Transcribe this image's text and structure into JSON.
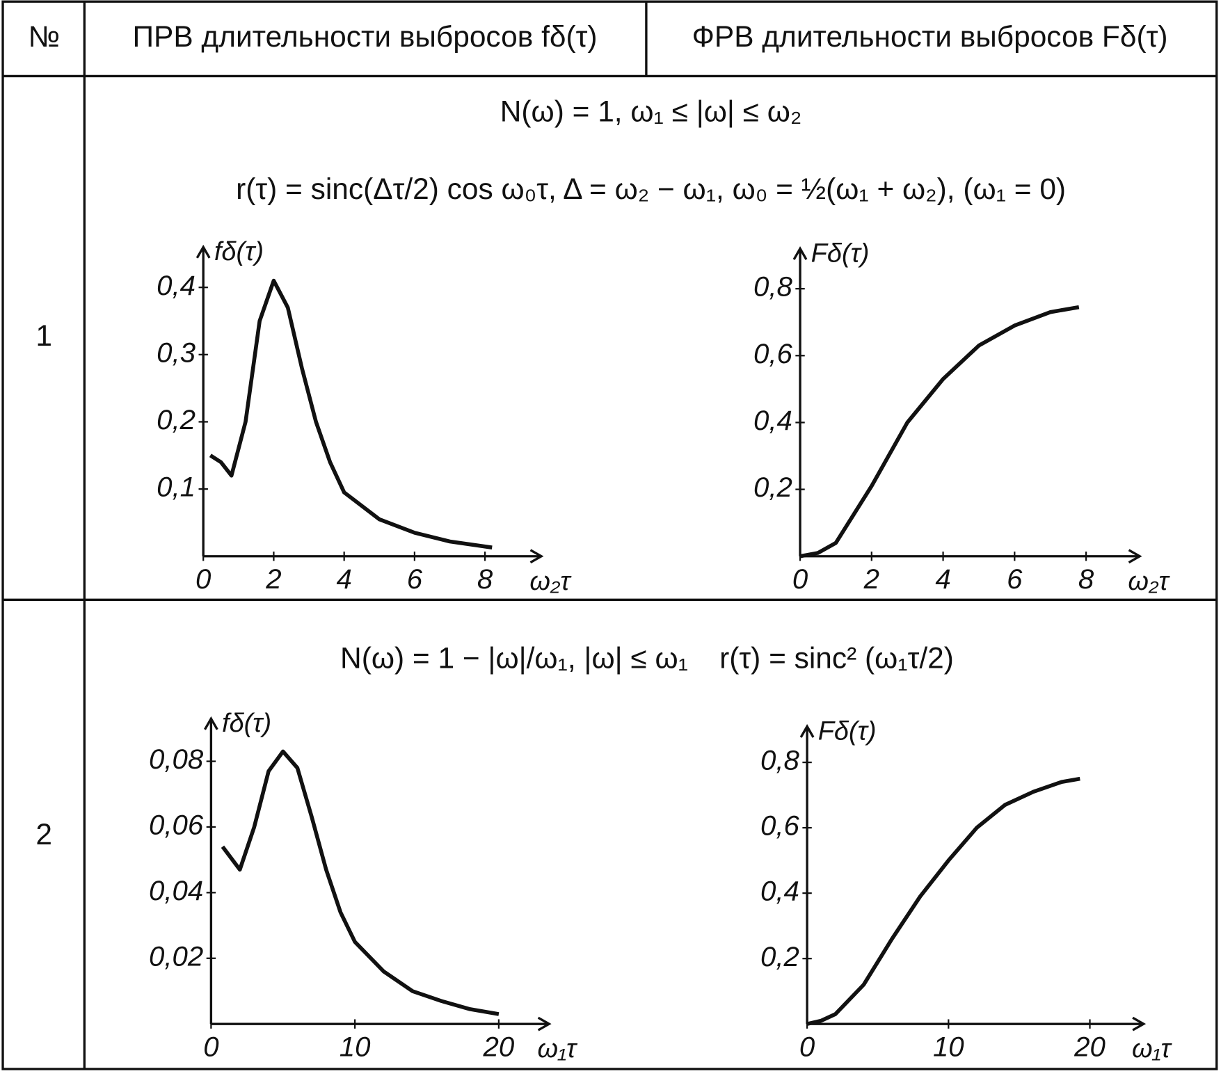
{
  "table": {
    "header": [
      "№",
      "ПРВ длительности выбросов fδ(τ)",
      "ФРВ длительности выбросов Fδ(τ)"
    ],
    "rows": [
      {
        "number": "1",
        "formulas": [
          "N(ω) = 1,  ω₁ ≤ |ω| ≤ ω₂",
          "r(τ) = sinc(Δτ/2) cos ω₀τ,  Δ = ω₂ − ω₁,  ω₀ = ½(ω₁ + ω₂),  (ω₁ = 0)"
        ],
        "charts": [
          {
            "type": "line",
            "y_label": "fδ(τ)",
            "x_label": "ω₂τ",
            "color": "#111",
            "x": [
              0.2,
              0.5,
              0.8,
              1.2,
              1.6,
              2.0,
              2.4,
              2.8,
              3.2,
              3.6,
              4,
              5,
              6,
              7,
              8.2
            ],
            "values": [
              0.15,
              0.14,
              0.12,
              0.2,
              0.35,
              0.41,
              0.37,
              0.28,
              0.2,
              0.14,
              0.095,
              0.055,
              0.035,
              0.022,
              0.013
            ],
            "xlim": [
              0,
              9.6
            ],
            "ylim": [
              0,
              0.46
            ],
            "xticks": [
              0,
              2,
              4,
              6,
              8
            ],
            "yticks": [
              {
                "value": 0.1,
                "label": "0,1"
              },
              {
                "value": 0.2,
                "label": "0,2"
              },
              {
                "value": 0.3,
                "label": "0,3"
              },
              {
                "value": 0.4,
                "label": "0,4"
              }
            ]
          },
          {
            "type": "line",
            "y_label": "Fδ(τ)",
            "x_label": "ω₂τ",
            "color": "#111",
            "x": [
              0,
              0.5,
              1,
              2,
              3,
              4,
              5,
              6,
              7,
              7.8
            ],
            "values": [
              0,
              0.01,
              0.04,
              0.21,
              0.4,
              0.53,
              0.63,
              0.69,
              0.73,
              0.745
            ],
            "xlim": [
              0,
              9.5
            ],
            "ylim": [
              0,
              0.92
            ],
            "xticks": [
              0,
              2,
              4,
              6,
              8
            ],
            "yticks": [
              {
                "value": 0.2,
                "label": "0,2"
              },
              {
                "value": 0.4,
                "label": "0,4"
              },
              {
                "value": 0.6,
                "label": "0,6"
              },
              {
                "value": 0.8,
                "label": "0,8"
              }
            ]
          }
        ]
      },
      {
        "number": "2",
        "formulas": [
          "N(ω) = 1 − |ω|/ω₁,  |ω| ≤ ω₁",
          "r(τ) = sinc² (ω₁τ/2)"
        ],
        "charts": [
          {
            "type": "line",
            "y_label": "fδ(τ)",
            "x_label": "ω₁τ",
            "color": "#111",
            "x": [
              0.8,
              2,
              3,
              4,
              5,
              6,
              7,
              8,
              9,
              10,
              12,
              14,
              16,
              18,
              20
            ],
            "values": [
              0.054,
              0.047,
              0.06,
              0.077,
              0.083,
              0.078,
              0.063,
              0.047,
              0.034,
              0.025,
              0.016,
              0.01,
              0.007,
              0.0045,
              0.003
            ],
            "xlim": [
              0,
              23.5
            ],
            "ylim": [
              0,
              0.093
            ],
            "xticks": [
              0,
              10,
              20
            ],
            "yticks": [
              {
                "value": 0.02,
                "label": "0,02"
              },
              {
                "value": 0.04,
                "label": "0,04"
              },
              {
                "value": 0.06,
                "label": "0,06"
              },
              {
                "value": 0.08,
                "label": "0,08"
              }
            ]
          },
          {
            "type": "line",
            "y_label": "Fδ(τ)",
            "x_label": "ω₁τ",
            "color": "#111",
            "x": [
              0,
              1,
              2,
              4,
              6,
              8,
              10,
              12,
              14,
              16,
              18,
              19.3
            ],
            "values": [
              0,
              0.01,
              0.03,
              0.12,
              0.26,
              0.39,
              0.5,
              0.6,
              0.67,
              0.71,
              0.74,
              0.75
            ],
            "xlim": [
              0,
              23.8
            ],
            "ylim": [
              0,
              0.91
            ],
            "xticks": [
              0,
              10,
              20
            ],
            "yticks": [
              {
                "value": 0.2,
                "label": "0,2"
              },
              {
                "value": 0.4,
                "label": "0,4"
              },
              {
                "value": 0.6,
                "label": "0,6"
              },
              {
                "value": 0.8,
                "label": "0,8"
              }
            ]
          }
        ]
      }
    ]
  }
}
